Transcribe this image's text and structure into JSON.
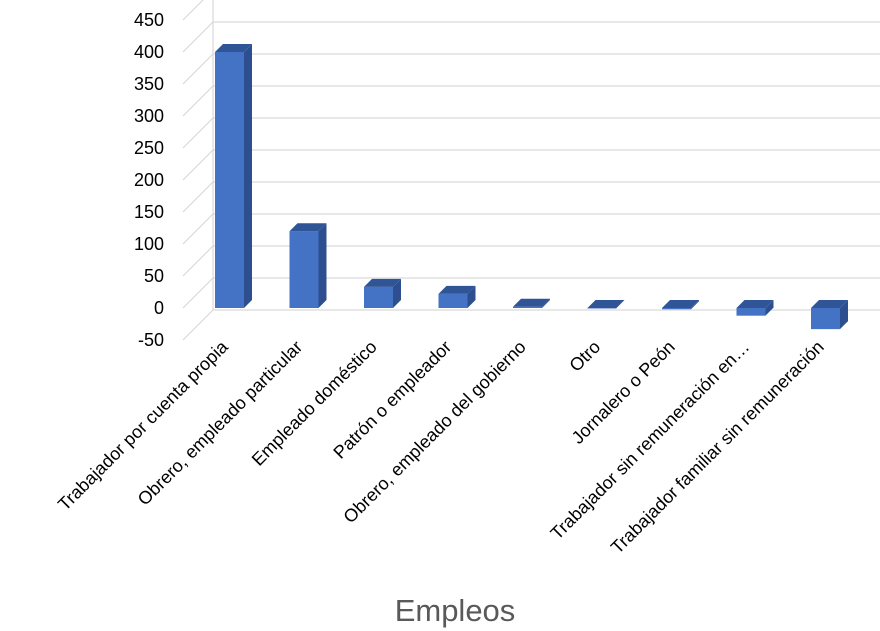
{
  "chart_data": {
    "type": "bar",
    "style": "3d-column",
    "categories": [
      "Trabajador por cuenta propia",
      "Obrero, empleado particular",
      "Empleado doméstico",
      "Patrón o empleador",
      "Obrero, empleado del gobierno",
      "Otro",
      "Jornalero o Peón",
      "Trabajador sin remuneración en…",
      "Trabajador familiar sin remuneración"
    ],
    "values": [
      400,
      120,
      33,
      22,
      2,
      0,
      -2,
      -12,
      -33
    ],
    "yticks": [
      "450",
      "400",
      "350",
      "300",
      "250",
      "200",
      "150",
      "100",
      "50",
      "0",
      "-50"
    ],
    "ylim": [
      -50,
      450
    ],
    "xlabel": "Empleos",
    "ylabel": "",
    "title": "",
    "grid": true,
    "legend": "none",
    "colors": {
      "front": "#4472c4",
      "side": "#2e4f8f",
      "top": "#2f5597"
    }
  }
}
